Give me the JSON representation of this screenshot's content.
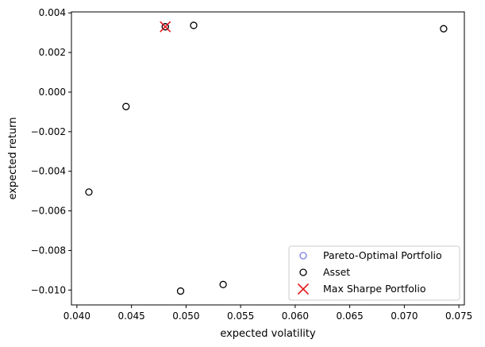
{
  "chart_data": {
    "type": "scatter",
    "title": "",
    "xlabel": "expected volatility",
    "ylabel": "expected return",
    "xlim": [
      0.0395,
      0.0755
    ],
    "ylim": [
      -0.01075,
      0.00405
    ],
    "xticks": [
      0.04,
      0.045,
      0.05,
      0.055,
      0.06,
      0.065,
      0.07,
      0.075
    ],
    "xtick_labels": [
      "0.040",
      "0.045",
      "0.050",
      "0.055",
      "0.060",
      "0.065",
      "0.070",
      "0.075"
    ],
    "yticks": [
      0.004,
      0.002,
      0.0,
      -0.002,
      -0.004,
      -0.006,
      -0.008,
      -0.01
    ],
    "ytick_labels": [
      "0.004",
      "0.002",
      "0.000",
      "−0.002",
      "−0.004",
      "−0.006",
      "−0.008",
      "−0.010"
    ],
    "grid": false,
    "legend_position": "lower-right",
    "series": [
      {
        "name": "Pareto-Optimal Portfolio",
        "marker": "open-circle",
        "color": "#7b7be6",
        "points": [
          [
            0.0481,
            0.0033
          ]
        ]
      },
      {
        "name": "Asset",
        "marker": "open-circle",
        "color": "#000000",
        "points": [
          [
            0.0481,
            0.0033
          ],
          [
            0.0507,
            0.00337
          ],
          [
            0.0736,
            0.0032
          ],
          [
            0.0445,
            -0.00073
          ],
          [
            0.0411,
            -0.00505
          ],
          [
            0.0495,
            -0.01005
          ],
          [
            0.0534,
            -0.00972
          ]
        ]
      },
      {
        "name": "Max Sharpe Portfolio",
        "marker": "x",
        "color": "#e41a1c",
        "points": [
          [
            0.0481,
            0.0033
          ]
        ]
      }
    ]
  }
}
